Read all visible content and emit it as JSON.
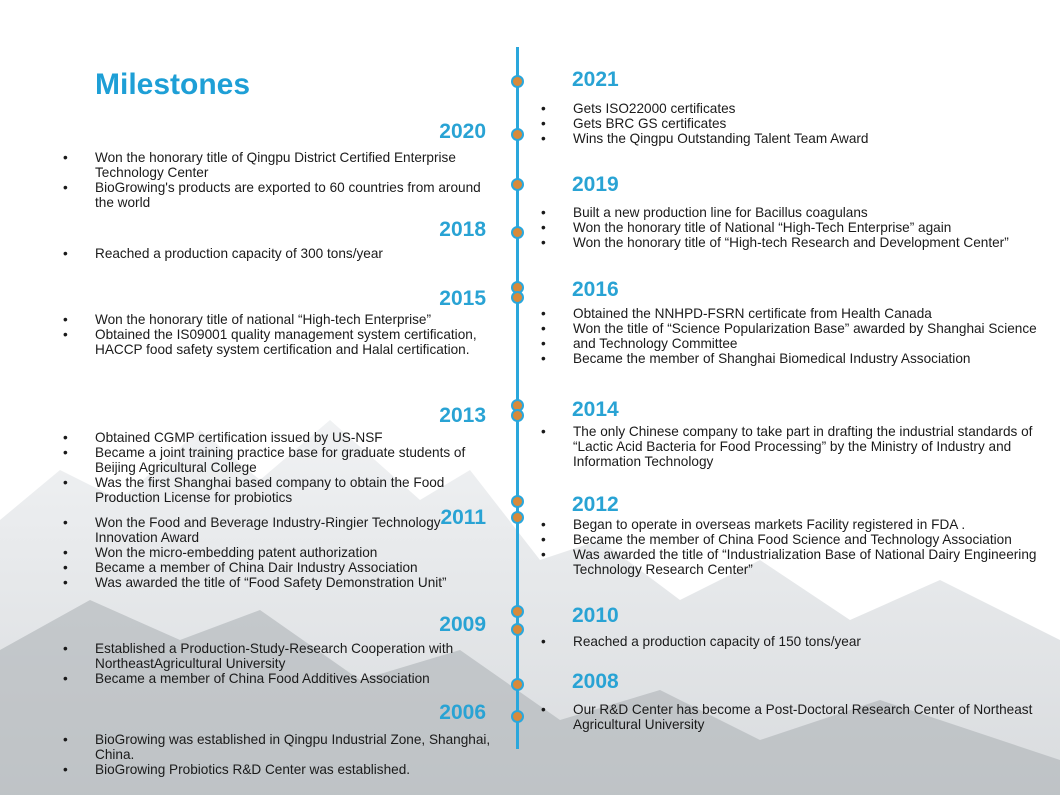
{
  "title": "Milestones",
  "colors": {
    "accent": "#29a3d4",
    "timeline": "#2aa7dc",
    "dot": "#d88a3a"
  },
  "left": [
    {
      "year": "2020",
      "items": [
        "Won the honorary title of Qingpu District Certified Enterprise Technology Center",
        "BioGrowing's products are exported to 60 countries from around the world"
      ]
    },
    {
      "year": "2018",
      "items": [
        "Reached a production capacity of 300 tons/year"
      ]
    },
    {
      "year": "2015",
      "items": [
        "Won the honorary title of national “High-tech Enterprise”",
        "Obtained the IS09001 quality management system certification, HACCP food safety system certification and Halal certification."
      ]
    },
    {
      "year": "2013",
      "items": [
        "Obtained CGMP certification issued by US-NSF",
        "Became a joint training practice base for graduate students of Beijing Agricultural College",
        "Was the first Shanghai based company to obtain the Food Production License for probiotics"
      ]
    },
    {
      "year": "2011",
      "items": [
        "Won the Food and Beverage Industry-Ringier Technology Innovation Award",
        "Won the micro-embedding patent authorization",
        "Became a member of China Dair Industry Association",
        "Was awarded the title of “Food Safety Demonstration Unit”"
      ]
    },
    {
      "year": "2009",
      "items": [
        "Established a Production-Study-Research Cooperation with NortheastAgricultural University",
        "Became a member of China Food Additives Association"
      ]
    },
    {
      "year": "2006",
      "items": [
        "BioGrowing was established in Qingpu Industrial Zone, Shanghai, China.",
        "BioGrowing Probiotics R&D Center was established."
      ]
    }
  ],
  "right": [
    {
      "year": "2021",
      "items": [
        "Gets ISO22000 certificates",
        "Gets BRC GS certificates",
        "Wins the Qingpu Outstanding Talent Team Award"
      ]
    },
    {
      "year": "2019",
      "items": [
        "Built a new production line for Bacillus coagulans",
        "Won the honorary title of National “High-Tech Enterprise” again",
        "Won the honorary title of “High-tech Research and Development Center”"
      ]
    },
    {
      "year": "2016",
      "items": [
        "Obtained the NNHPD-FSRN certificate from Health Canada",
        "Won the title of “Science Popularization Base” awarded by Shanghai Science",
        "and Technology Committee",
        "Became the member of Shanghai Biomedical Industry Association"
      ]
    },
    {
      "year": "2014",
      "items": [
        "The only Chinese company to take part in drafting the industrial standards of “Lactic Acid Bacteria for Food Processing” by the Ministry of Industry and Information Technology"
      ]
    },
    {
      "year": "2012",
      "items": [
        "Began to operate in overseas markets Facility registered in FDA .",
        "Became the member of China Food Science and Technology Association",
        "Was awarded the title of “Industrialization Base of National Dairy Engineering Technology Research Center”"
      ]
    },
    {
      "year": "2010",
      "items": [
        "Reached a production capacity of 150 tons/year"
      ]
    },
    {
      "year": "2008",
      "items": [
        "Our R&D Center has become a Post-Doctoral Research Center of Northeast Agricultural University"
      ]
    }
  ]
}
